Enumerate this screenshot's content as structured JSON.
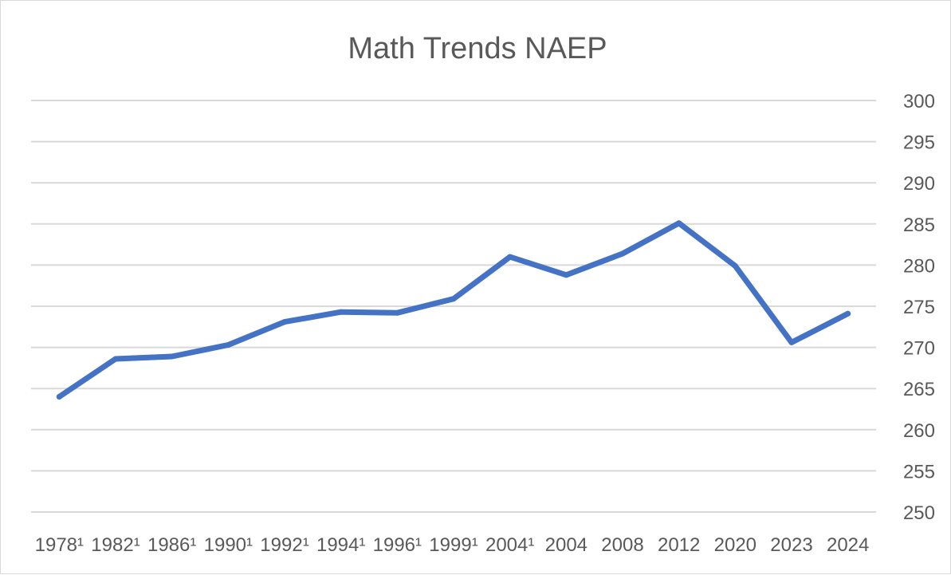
{
  "chart_data": {
    "type": "line",
    "title": "Math Trends NAEP",
    "xlabel": "",
    "ylabel": "",
    "categories": [
      "1978¹",
      "1982¹",
      "1986¹",
      "1990¹",
      "1992¹",
      "1994¹",
      "1996¹",
      "1999¹",
      "2004¹",
      "2004",
      "2008",
      "2012",
      "2020",
      "2023",
      "2024"
    ],
    "series": [
      {
        "values": [
          264,
          268.6,
          268.9,
          270.3,
          273.1,
          274.3,
          274.2,
          275.9,
          281,
          278.8,
          281.4,
          285.1,
          279.9,
          270.6,
          274.1
        ],
        "color": "#4472c4"
      }
    ],
    "ylim": [
      250,
      300
    ],
    "yticks": [
      "300",
      "295",
      "290",
      "285",
      "280",
      "275",
      "270",
      "265",
      "260",
      "255",
      "250"
    ],
    "y_axis_position": "right",
    "grid": true,
    "legend": "none"
  }
}
